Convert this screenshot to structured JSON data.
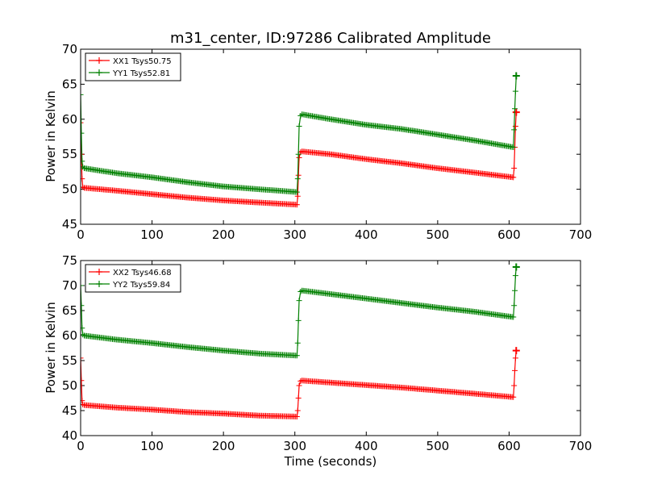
{
  "chart_data": [
    {
      "type": "line",
      "title": "m31_center, ID:97286 Calibrated Amplitude",
      "xlabel": "",
      "ylabel": "Power in Kelvin",
      "xlim": [
        0,
        700
      ],
      "ylim": [
        45,
        70
      ],
      "xticks": [
        "0",
        "100",
        "200",
        "300",
        "400",
        "500",
        "600",
        "700"
      ],
      "yticks": [
        "45",
        "50",
        "55",
        "60",
        "65",
        "70"
      ],
      "grid": false,
      "legend_position": "top-left",
      "series": [
        {
          "name": "XX1 Tsys50.75",
          "color": "#ff0000",
          "x": [
            0,
            1,
            2,
            3,
            5,
            50,
            100,
            150,
            200,
            250,
            303,
            304,
            305,
            306,
            308,
            310,
            350,
            400,
            450,
            500,
            550,
            606,
            607,
            608,
            609,
            610
          ],
          "y": [
            59.5,
            55.0,
            51.5,
            50.3,
            50.2,
            49.8,
            49.3,
            48.8,
            48.4,
            48.1,
            47.8,
            49.0,
            52.0,
            54.5,
            55.3,
            55.4,
            55.0,
            54.3,
            53.7,
            53.0,
            52.4,
            51.7,
            53.0,
            56.0,
            59.0,
            61.0
          ]
        },
        {
          "name": "YY1 Tsys52.81",
          "color": "#008000",
          "x": [
            0,
            1,
            2,
            3,
            5,
            50,
            100,
            150,
            200,
            250,
            303,
            304,
            305,
            306,
            308,
            310,
            350,
            400,
            450,
            500,
            550,
            606,
            607,
            608,
            609,
            610
          ],
          "y": [
            63.5,
            58.0,
            54.0,
            53.2,
            53.0,
            52.3,
            51.7,
            51.0,
            50.4,
            50.0,
            49.6,
            51.5,
            55.0,
            59.0,
            60.5,
            60.7,
            60.0,
            59.2,
            58.6,
            57.8,
            57.0,
            56.0,
            58.5,
            61.5,
            64.0,
            66.2
          ]
        }
      ]
    },
    {
      "type": "line",
      "title": "",
      "xlabel": "Time (seconds)",
      "ylabel": "Power in Kelvin",
      "xlim": [
        0,
        700
      ],
      "ylim": [
        40,
        75
      ],
      "xticks": [
        "0",
        "100",
        "200",
        "300",
        "400",
        "500",
        "600",
        "700"
      ],
      "yticks": [
        "40",
        "45",
        "50",
        "55",
        "60",
        "65",
        "70",
        "75"
      ],
      "grid": false,
      "legend_position": "top-left",
      "series": [
        {
          "name": "XX2 Tsys46.68",
          "color": "#ff0000",
          "x": [
            0,
            1,
            2,
            3,
            5,
            50,
            100,
            150,
            200,
            250,
            303,
            304,
            305,
            306,
            308,
            310,
            350,
            400,
            450,
            500,
            550,
            606,
            607,
            608,
            609,
            610
          ],
          "y": [
            55.5,
            51.0,
            47.0,
            46.2,
            46.1,
            45.6,
            45.2,
            44.7,
            44.4,
            44.0,
            43.8,
            45.0,
            47.5,
            50.0,
            50.9,
            51.0,
            50.6,
            50.1,
            49.6,
            49.0,
            48.4,
            47.7,
            50.0,
            53.0,
            55.5,
            57.0
          ]
        },
        {
          "name": "YY2 Tsys59.84",
          "color": "#008000",
          "x": [
            0,
            1,
            2,
            3,
            5,
            50,
            100,
            150,
            200,
            250,
            303,
            304,
            305,
            306,
            308,
            310,
            350,
            400,
            450,
            500,
            550,
            606,
            607,
            608,
            609,
            610
          ],
          "y": [
            70.0,
            66.0,
            61.5,
            60.2,
            60.0,
            59.2,
            58.5,
            57.7,
            57.0,
            56.4,
            56.0,
            58.5,
            63.0,
            67.0,
            68.8,
            69.0,
            68.3,
            67.4,
            66.5,
            65.6,
            64.8,
            63.7,
            66.0,
            69.0,
            72.0,
            73.7
          ]
        }
      ]
    }
  ]
}
